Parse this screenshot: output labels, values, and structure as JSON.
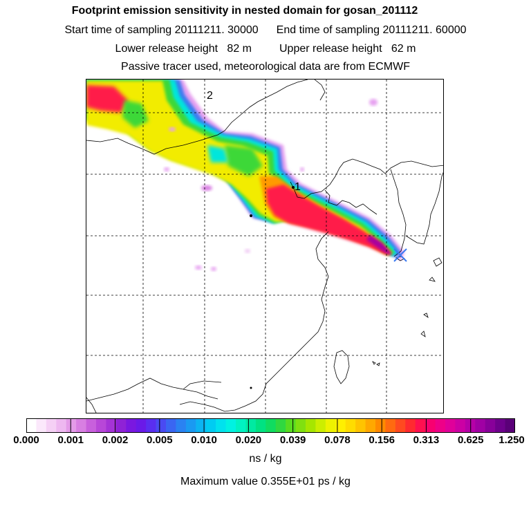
{
  "title": "Footprint emission sensitivity in nested domain for gosan_201112",
  "sampling": {
    "start": "Start time of sampling 20111211. 30000",
    "end": "End time of sampling 20111211. 60000"
  },
  "release": {
    "lower": "Lower release height   82 m",
    "upper": "Upper release height   62 m"
  },
  "note": "Passive tracer used, meteorological data are from ECMWF",
  "map": {
    "labels": [
      "2",
      "1"
    ],
    "receptor_marker": "x-marker-icon"
  },
  "colorbar": {
    "tick_labels": [
      "0.000",
      "0.001",
      "0.002",
      "0.005",
      "0.010",
      "0.020",
      "0.039",
      "0.078",
      "0.156",
      "0.313",
      "0.625",
      "1.250"
    ],
    "colors": [
      "#ffffff",
      "#fbe8fb",
      "#f5d0f5",
      "#eeb8f0",
      "#e49be8",
      "#d87fe2",
      "#c860dc",
      "#b847d8",
      "#a533d6",
      "#8f22d6",
      "#7a18e0",
      "#6a1ae8",
      "#5a2ef0",
      "#4a4af2",
      "#3a66f2",
      "#2a82f2",
      "#1a9af2",
      "#0cb4f2",
      "#00ccf2",
      "#00e2ee",
      "#00f2e2",
      "#00f2c2",
      "#00eaa2",
      "#00e282",
      "#10dc60",
      "#30d840",
      "#58dc20",
      "#80e010",
      "#a6e600",
      "#ccee00",
      "#eef200",
      "#fff000",
      "#ffdc00",
      "#ffc400",
      "#ffa800",
      "#ff8a00",
      "#ff6a10",
      "#ff4a20",
      "#ff2a30",
      "#ff1050",
      "#f80070",
      "#ee0088",
      "#e0009a",
      "#cc00a4",
      "#b600a8",
      "#a000a4",
      "#88009a",
      "#6e008c",
      "#5a0078"
    ],
    "units": "ns / kg"
  },
  "max_value": "Maximum value  0.355E+01 ps / kg"
}
